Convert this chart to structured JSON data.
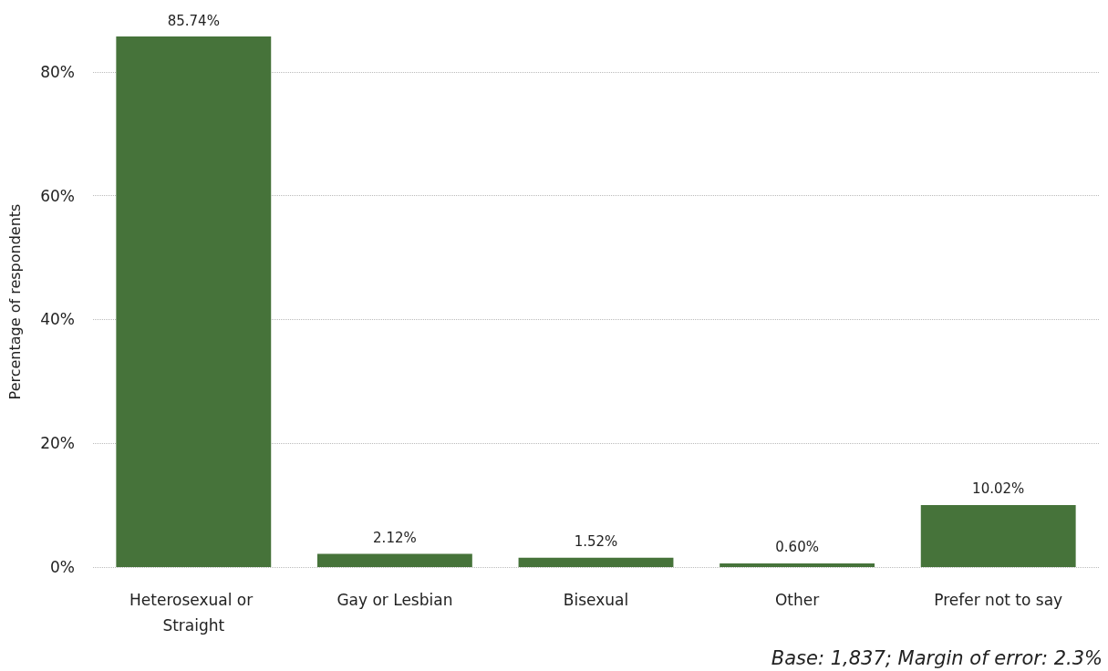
{
  "chart_data": {
    "type": "bar",
    "ylabel": "Percentage of respondents",
    "categories": [
      "Heterosexual or Straight",
      "Gay or Lesbian",
      "Bisexual",
      "Other",
      "Prefer not to say"
    ],
    "values": [
      85.74,
      2.12,
      1.52,
      0.6,
      10.02
    ],
    "value_labels": [
      "85.74%",
      "2.12%",
      "1.52%",
      "0.60%",
      "10.02%"
    ],
    "color": "#46733a",
    "ylim": [
      0,
      85.74
    ],
    "yticks": [
      {
        "value": 0,
        "label": "0%"
      },
      {
        "value": 20,
        "label": "20%"
      },
      {
        "value": 40,
        "label": "40%"
      },
      {
        "value": 60,
        "label": "60%"
      },
      {
        "value": 80,
        "label": "80%"
      }
    ],
    "grid": "y",
    "annotations": [
      "Base: 1,837; Margin of error: 2.3%"
    ]
  }
}
